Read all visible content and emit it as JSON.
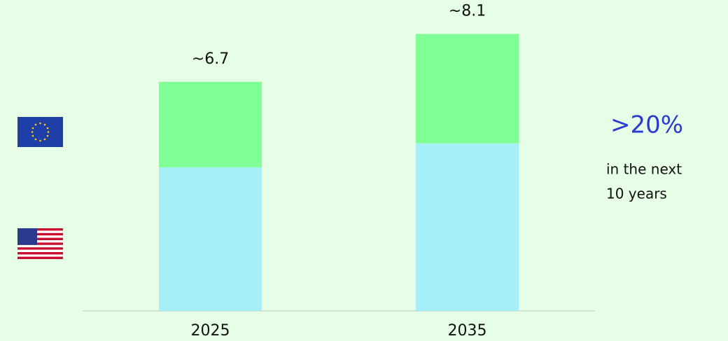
{
  "chart_data": {
    "type": "stacked_bar",
    "categories": [
      "2025",
      "2035"
    ],
    "series": [
      {
        "color": "#a6eef8",
        "values": [
          4.2,
          4.9
        ]
      },
      {
        "color": "#80ff96",
        "values": [
          2.5,
          3.2
        ]
      }
    ],
    "total_labels": [
      "~6.7",
      "~8.1"
    ],
    "ylim": [
      0,
      8.5
    ],
    "callout": {
      "headline": ">20%",
      "lines": [
        "in the next",
        "10 years"
      ]
    }
  }
}
